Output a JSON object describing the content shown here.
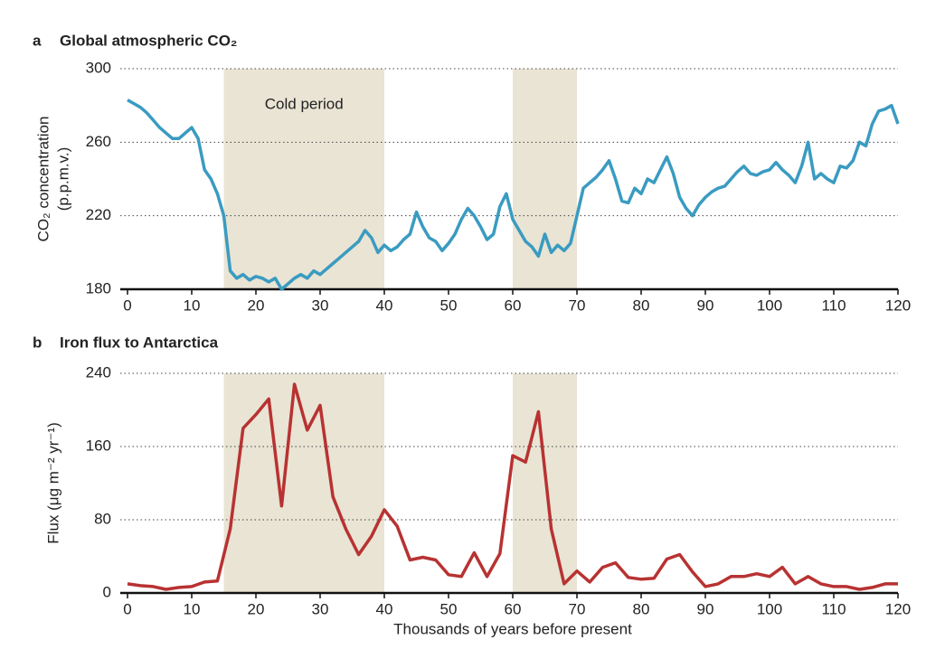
{
  "chart_data": [
    {
      "type": "line",
      "panel_label": "a",
      "title": "Global atmospheric CO₂",
      "y_label": [
        "CO₂ concentration",
        "(p.p.m.v.)"
      ],
      "color": "#3a9bc1",
      "x": [
        0,
        1,
        2,
        3,
        4,
        5,
        6,
        7,
        8,
        9,
        10,
        11,
        12,
        13,
        14,
        15,
        16,
        17,
        18,
        19,
        20,
        21,
        22,
        23,
        24,
        25,
        26,
        27,
        28,
        29,
        30,
        31,
        32,
        33,
        34,
        35,
        36,
        37,
        38,
        39,
        40,
        41,
        42,
        43,
        44,
        45,
        46,
        47,
        48,
        49,
        50,
        51,
        52,
        53,
        54,
        55,
        56,
        57,
        58,
        59,
        60,
        61,
        62,
        63,
        64,
        65,
        66,
        67,
        68,
        69,
        70,
        71,
        72,
        73,
        74,
        75,
        76,
        77,
        78,
        79,
        80,
        81,
        82,
        83,
        84,
        85,
        86,
        87,
        88,
        89,
        90,
        91,
        92,
        93,
        94,
        95,
        96,
        97,
        98,
        99,
        100,
        101,
        102,
        103,
        104,
        105,
        106,
        107,
        108,
        109,
        110,
        111,
        112,
        113,
        114,
        115,
        116,
        117,
        118,
        119,
        120
      ],
      "values": [
        283,
        281,
        279,
        276,
        272,
        268,
        265,
        262,
        262,
        265,
        268,
        262,
        245,
        240,
        232,
        220,
        190,
        186,
        188,
        185,
        187,
        186,
        184,
        186,
        180,
        183,
        186,
        188,
        186,
        190,
        188,
        191,
        194,
        197,
        200,
        203,
        206,
        212,
        208,
        200,
        204,
        201,
        203,
        207,
        210,
        222,
        214,
        208,
        206,
        201,
        205,
        210,
        218,
        224,
        220,
        214,
        207,
        210,
        225,
        232,
        218,
        212,
        206,
        203,
        198,
        210,
        200,
        204,
        201,
        205,
        220,
        235,
        238,
        241,
        245,
        250,
        240,
        228,
        227,
        235,
        232,
        240,
        238,
        245,
        252,
        243,
        230,
        224,
        220,
        226,
        230,
        233,
        235,
        236,
        240,
        244,
        247,
        243,
        242,
        244,
        245,
        249,
        245,
        242,
        238,
        247,
        260,
        240,
        243,
        240,
        238,
        247,
        246,
        250,
        260,
        258,
        270,
        277,
        278,
        280,
        270
      ],
      "xlim": [
        0,
        120
      ],
      "xticks": [
        0,
        10,
        20,
        30,
        40,
        50,
        60,
        70,
        80,
        90,
        100,
        110,
        120
      ],
      "ylim": [
        180,
        300
      ],
      "yticks": [
        180,
        220,
        260,
        300
      ],
      "grid": true,
      "shaded_regions": [
        {
          "start": 15,
          "end": 40,
          "label": "Cold period"
        },
        {
          "start": 60,
          "end": 70
        }
      ]
    },
    {
      "type": "line",
      "panel_label": "b",
      "title": "Iron flux to Antarctica",
      "y_label": [
        "Flux (μg m⁻² yr⁻¹)"
      ],
      "x_label": "Thousands of years before present",
      "color": "#b83232",
      "x": [
        0,
        2,
        4,
        6,
        8,
        10,
        12,
        14,
        16,
        18,
        20,
        22,
        24,
        26,
        28,
        30,
        32,
        34,
        36,
        38,
        40,
        42,
        44,
        46,
        48,
        50,
        52,
        54,
        56,
        58,
        60,
        62,
        64,
        66,
        68,
        70,
        72,
        74,
        76,
        78,
        80,
        82,
        84,
        86,
        88,
        90,
        92,
        94,
        96,
        98,
        100,
        102,
        104,
        106,
        108,
        110,
        112,
        114,
        116,
        118,
        120
      ],
      "values": [
        10,
        8,
        7,
        4,
        6,
        7,
        12,
        13,
        70,
        180,
        195,
        212,
        95,
        228,
        178,
        205,
        105,
        70,
        42,
        62,
        91,
        73,
        36,
        39,
        36,
        20,
        18,
        44,
        18,
        43,
        150,
        143,
        198,
        70,
        10,
        24,
        12,
        28,
        33,
        17,
        15,
        16,
        37,
        42,
        23,
        7,
        10,
        18,
        18,
        21,
        18,
        28,
        10,
        18,
        10,
        7,
        7,
        4,
        6,
        10,
        10
      ],
      "xlim": [
        0,
        120
      ],
      "xticks": [
        0,
        10,
        20,
        30,
        40,
        50,
        60,
        70,
        80,
        90,
        100,
        110,
        120
      ],
      "ylim": [
        0,
        240
      ],
      "yticks": [
        0,
        80,
        160,
        240
      ],
      "grid": true,
      "shaded_regions": [
        {
          "start": 15,
          "end": 40
        },
        {
          "start": 60,
          "end": 70
        }
      ]
    }
  ]
}
